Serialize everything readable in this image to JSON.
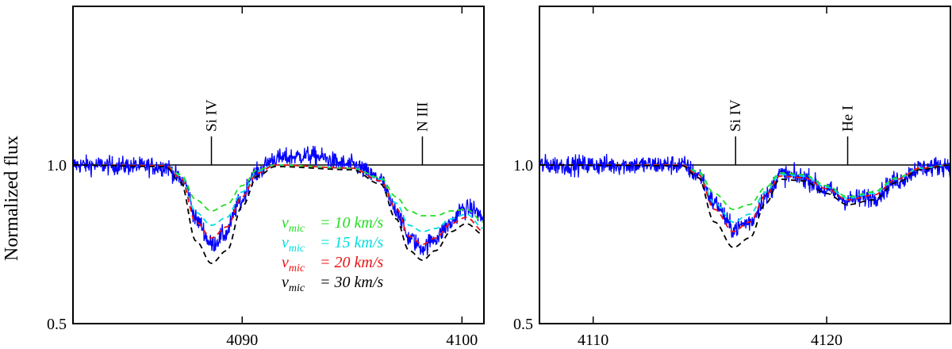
{
  "chart_data": [
    {
      "type": "line",
      "panel": "left",
      "ylabel": "Normalized flux",
      "xlim": [
        4082.3,
        4101.0
      ],
      "ylim": [
        0.5,
        1.5
      ],
      "xticks": [
        4090,
        4100
      ],
      "xtick_labels": [
        "4090",
        "4100"
      ],
      "yticks": [
        0.5,
        1.0
      ],
      "ytick_labels": [
        "0.5",
        "1.0"
      ],
      "continuum": 1.0,
      "line_ids": [
        {
          "label": "Si IV",
          "wavelength": 4088.6
        },
        {
          "label": "N III",
          "wavelength": 4098.2
        }
      ],
      "observed": {
        "name": "observed",
        "color": "#0000ff",
        "noise": 0.028,
        "x": [
          4082.3,
          4086.5,
          4087.3,
          4088.0,
          4088.6,
          4089.2,
          4089.9,
          4090.5,
          4091.5,
          4093.0,
          4095.0,
          4096.2,
          4097.0,
          4097.6,
          4098.2,
          4098.8,
          4099.4,
          4100.0,
          4100.5,
          4101.0
        ],
        "y": [
          1.0,
          0.995,
          0.95,
          0.82,
          0.75,
          0.78,
          0.88,
          0.97,
          1.02,
          1.03,
          1.0,
          0.96,
          0.86,
          0.77,
          0.74,
          0.77,
          0.81,
          0.86,
          0.86,
          0.83
        ]
      },
      "series": [
        {
          "name": "v_mic = 10 km/s",
          "color": "#22dd22",
          "x": [
            4082.3,
            4086.5,
            4087.2,
            4087.9,
            4088.6,
            4089.3,
            4090.0,
            4090.7,
            4091.5,
            4095.0,
            4096.3,
            4097.0,
            4097.6,
            4098.2,
            4098.8,
            4099.5,
            4100.2,
            4101.0
          ],
          "y": [
            1.0,
            0.998,
            0.97,
            0.89,
            0.855,
            0.875,
            0.935,
            0.985,
            1.0,
            0.99,
            0.96,
            0.9,
            0.855,
            0.84,
            0.84,
            0.855,
            0.86,
            0.82
          ]
        },
        {
          "name": "v_mic = 15 km/s",
          "color": "#00dddd",
          "x": [
            4082.3,
            4086.5,
            4087.2,
            4087.9,
            4088.6,
            4089.3,
            4090.0,
            4090.7,
            4091.5,
            4095.0,
            4096.3,
            4097.0,
            4097.6,
            4098.2,
            4098.8,
            4099.5,
            4100.2,
            4101.0
          ],
          "y": [
            1.0,
            0.998,
            0.965,
            0.85,
            0.81,
            0.835,
            0.915,
            0.98,
            1.0,
            0.99,
            0.955,
            0.88,
            0.81,
            0.79,
            0.8,
            0.83,
            0.845,
            0.8
          ]
        },
        {
          "name": "v_mic = 20 km/s",
          "color": "#ee1111",
          "x": [
            4082.3,
            4086.5,
            4087.2,
            4087.9,
            4088.6,
            4089.3,
            4090.0,
            4090.7,
            4091.5,
            4095.0,
            4096.3,
            4097.0,
            4097.6,
            4098.2,
            4098.8,
            4099.5,
            4100.2,
            4101.0
          ],
          "y": [
            1.0,
            0.998,
            0.96,
            0.82,
            0.77,
            0.805,
            0.9,
            0.975,
            1.0,
            0.99,
            0.95,
            0.865,
            0.775,
            0.75,
            0.77,
            0.815,
            0.835,
            0.79
          ]
        },
        {
          "name": "v_mic = 30 km/s",
          "color": "#000000",
          "x": [
            4082.3,
            4086.5,
            4087.2,
            4087.9,
            4088.6,
            4089.3,
            4090.0,
            4090.7,
            4091.5,
            4095.0,
            4096.3,
            4097.0,
            4097.6,
            4098.2,
            4098.8,
            4099.5,
            4100.2,
            4101.0
          ],
          "y": [
            1.0,
            0.995,
            0.945,
            0.76,
            0.69,
            0.73,
            0.87,
            0.965,
            0.995,
            0.985,
            0.94,
            0.83,
            0.73,
            0.7,
            0.73,
            0.79,
            0.815,
            0.78
          ]
        }
      ],
      "legend": {
        "placement": "lower-center",
        "symbol": "v",
        "subscript": "mic",
        "entries": [
          {
            "value": "= 10 km/s",
            "color": "#22dd22"
          },
          {
            "value": "= 15 km/s",
            "color": "#00dddd"
          },
          {
            "value": "= 20 km/s",
            "color": "#ee1111"
          },
          {
            "value": "= 30 km/s",
            "color": "#000000"
          }
        ]
      }
    },
    {
      "type": "line",
      "panel": "right",
      "xlim": [
        4107.7,
        4125.3
      ],
      "ylim": [
        0.5,
        1.5
      ],
      "xticks": [
        4110,
        4120
      ],
      "xtick_labels": [
        "4110",
        "4120"
      ],
      "yticks": [
        0.5,
        1.0
      ],
      "ytick_labels": [
        "0.5",
        "1.0"
      ],
      "continuum": 1.0,
      "line_ids": [
        {
          "label": "Si IV",
          "wavelength": 4116.1
        },
        {
          "label": "He I",
          "wavelength": 4120.9
        }
      ],
      "observed": {
        "name": "observed",
        "color": "#0000ff",
        "noise": 0.03,
        "x": [
          4107.7,
          4113.8,
          4114.5,
          4115.2,
          4116.0,
          4116.7,
          4117.4,
          4118.0,
          4119.0,
          4120.0,
          4120.9,
          4122.0,
          4123.0,
          4124.0,
          4125.3
        ],
        "y": [
          1.0,
          1.0,
          0.97,
          0.88,
          0.8,
          0.82,
          0.9,
          0.97,
          0.96,
          0.92,
          0.89,
          0.9,
          0.95,
          0.99,
          1.0
        ]
      },
      "series": [
        {
          "name": "v_mic = 10 km/s",
          "color": "#22dd22",
          "x": [
            4107.7,
            4113.8,
            4114.5,
            4115.2,
            4116.0,
            4116.7,
            4117.4,
            4118.0,
            4119.0,
            4120.0,
            4120.9,
            4122.0,
            4123.0,
            4124.0,
            4125.3
          ],
          "y": [
            1.0,
            1.0,
            0.98,
            0.91,
            0.86,
            0.875,
            0.93,
            0.975,
            0.97,
            0.935,
            0.9,
            0.915,
            0.96,
            0.99,
            1.0
          ]
        },
        {
          "name": "v_mic = 15 km/s",
          "color": "#00dddd",
          "x": [
            4107.7,
            4113.8,
            4114.5,
            4115.2,
            4116.0,
            4116.7,
            4117.4,
            4118.0,
            4119.0,
            4120.0,
            4120.9,
            4122.0,
            4123.0,
            4124.0,
            4125.3
          ],
          "y": [
            1.0,
            1.0,
            0.975,
            0.88,
            0.82,
            0.845,
            0.915,
            0.97,
            0.965,
            0.93,
            0.895,
            0.91,
            0.955,
            0.99,
            1.0
          ]
        },
        {
          "name": "v_mic = 20 km/s",
          "color": "#ee1111",
          "x": [
            4107.7,
            4113.8,
            4114.5,
            4115.2,
            4116.0,
            4116.7,
            4117.4,
            4118.0,
            4119.0,
            4120.0,
            4120.9,
            4122.0,
            4123.0,
            4124.0,
            4125.3
          ],
          "y": [
            1.0,
            1.0,
            0.97,
            0.86,
            0.79,
            0.82,
            0.905,
            0.965,
            0.96,
            0.925,
            0.89,
            0.905,
            0.955,
            0.99,
            1.0
          ]
        },
        {
          "name": "v_mic = 30 km/s",
          "color": "#000000",
          "x": [
            4107.7,
            4113.8,
            4114.5,
            4115.2,
            4116.0,
            4116.7,
            4117.4,
            4118.0,
            4119.0,
            4120.0,
            4120.9,
            4122.0,
            4123.0,
            4124.0,
            4125.3
          ],
          "y": [
            1.0,
            0.998,
            0.96,
            0.82,
            0.74,
            0.77,
            0.88,
            0.955,
            0.95,
            0.91,
            0.875,
            0.89,
            0.945,
            0.985,
            1.0
          ]
        }
      ]
    }
  ]
}
